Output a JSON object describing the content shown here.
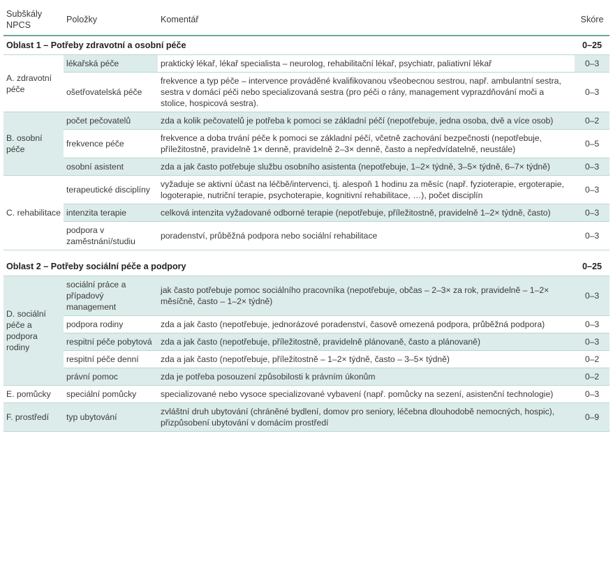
{
  "headers": {
    "subscale": "Subškály NPCS",
    "items": "Položky",
    "comment": "Komentář",
    "score": "Skóre"
  },
  "area1": {
    "title": "Oblast 1 – Potřeby zdravotní a osobní péče",
    "score": "0–25"
  },
  "area2": {
    "title": "Oblast 2 – Potřeby sociální péče a podpory",
    "score": "0–25"
  },
  "subscales": {
    "A": "A. zdravotní péče",
    "B": "B. osobní péče",
    "C": "C. rehabilitace",
    "D": "D. sociální péče a podpora rodiny",
    "E": "E. pomůcky",
    "F": "F. prostředí"
  },
  "rows": [
    {
      "item": "lékařská péče",
      "comment": "praktický lékař, lékař specialista – neurolog, rehabilitační lékař, psychiatr, paliativní lékař",
      "score": "0–3"
    },
    {
      "item": "ošetřovatelská péče",
      "comment": "frekvence a typ péče – intervence prováděné kvalifikovanou všeobecnou sestrou, např. ambulantní sestra, sestra v domácí péči nebo specializovaná sestra (pro péči o rány, management vyprazdňování moči a stolice, hospicová sestra).",
      "score": "0–3"
    },
    {
      "item": "počet pečovatelů",
      "comment": "zda a kolik pečovatelů je potřeba k pomoci se základní péčí (nepotřebuje, jedna osoba, dvě a více osob)",
      "score": "0–2"
    },
    {
      "item": "frekvence péče",
      "comment": "frekvence a doba trvání péče k pomoci se základní péčí, včetně zachování bezpečnosti (nepotřebuje, příležitostně, pravidelně 1× denně, pravidelně 2–3× denně, často a nepředvídatelně, neustále)",
      "score": "0–5"
    },
    {
      "item": "osobní asistent",
      "comment": "zda a jak často potřebuje službu osobního asistenta (nepotřebuje, 1–2× týdně, 3–5× týdně, 6–7× týdně)",
      "score": "0–3"
    },
    {
      "item": "terapeutické disciplíny",
      "comment": "vyžaduje se aktivní účast na léčbě/intervenci, tj. alespoň 1 hodinu za měsíc (např. fyzioterapie, ergoterapie, logoterapie, nutriční terapie, psychoterapie, kognitivní rehabilitace, …), počet disciplín",
      "score": "0–3"
    },
    {
      "item": "intenzita terapie",
      "comment": "celková intenzita vyžadované odborné terapie (nepotřebuje, příležitostně, pravidelně 1–2× týdně, často)",
      "score": "0–3"
    },
    {
      "item": "podpora v zaměstnání/studiu",
      "comment": "poradenství, průběžná podpora nebo sociální rehabilitace",
      "score": "0–3"
    },
    {
      "item": "sociální práce a případový management",
      "comment": "jak často potřebuje pomoc sociálního pracovníka (nepotřebuje, občas – 2–3× za rok, pravidelně – 1–2× měsíčně, často – 1–2× týdně)",
      "score": "0–3"
    },
    {
      "item": "podpora rodiny",
      "comment": "zda a jak často (nepotřebuje, jednorázové poradenství, časově omezená podpora, průběžná podpora)",
      "score": "0–3"
    },
    {
      "item": "respitní péče pobytová",
      "comment": "zda a jak často (nepotřebuje, příležitostně, pravidelně plánovaně, často a plánovaně)",
      "score": "0–3"
    },
    {
      "item": "respitní péče denní",
      "comment": "zda a jak často (nepotřebuje, příležitostně – 1–2× týdně, často – 3–5× týdně)",
      "score": "0–2"
    },
    {
      "item": "právní pomoc",
      "comment": "zda je potřeba posouzení způsobilosti k právním úkonům",
      "score": "0–2"
    },
    {
      "item": "speciální pomůcky",
      "comment": "specializované nebo vysoce specializované vybavení (např. pomůcky na sezení, asistenční technologie)",
      "score": "0–3"
    },
    {
      "item": "typ ubytování",
      "comment": "zvláštní druh ubytování (chráněné bydlení, domov pro seniory, léčebna dlouhodobě nemocných, hospic), přizpůsobení ubytování v domácím prostředí",
      "score": "0–9"
    }
  ],
  "colors": {
    "shade": "#dcecea",
    "rule": "#6aa89c"
  }
}
